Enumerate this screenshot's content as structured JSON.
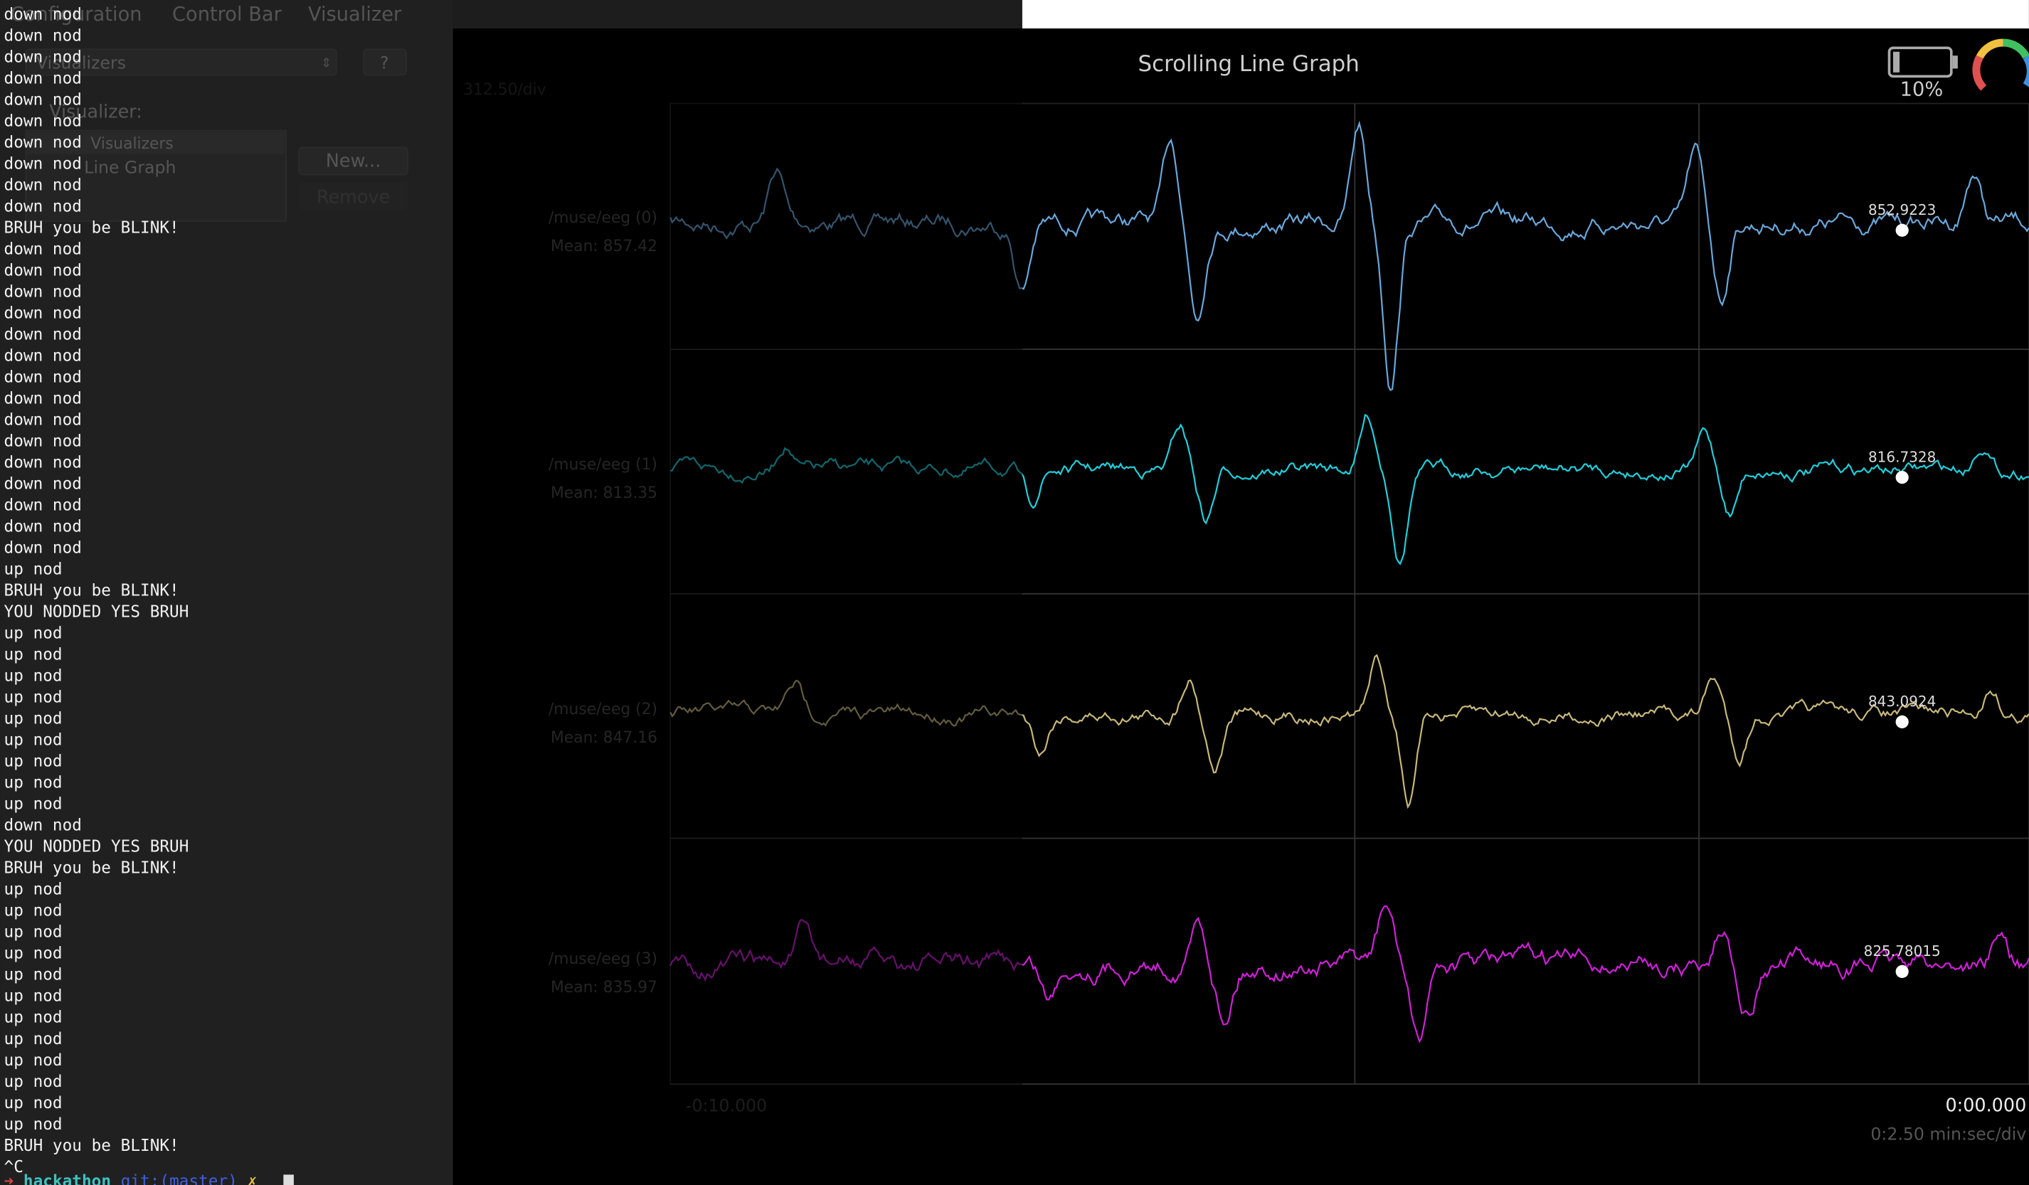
{
  "menu": [
    "Configuration",
    "Control Bar",
    "Visualizer"
  ],
  "panel": {
    "dropdown": "Visualizers",
    "help": "?",
    "label": "Visualizer:",
    "list": [
      "Visualizers",
      "Line Graph"
    ],
    "new_button": "New...",
    "remove_button": "Remove"
  },
  "graph": {
    "title": "Scrolling Line Graph",
    "scale": "312.50/div",
    "battery": "10%",
    "channels": [
      {
        "name": "/muse/eeg (0)",
        "mean": "Mean: 857.42",
        "current": "852.9223"
      },
      {
        "name": "/muse/eeg (1)",
        "mean": "Mean: 813.35",
        "current": "816.7328"
      },
      {
        "name": "/muse/eeg (2)",
        "mean": "Mean: 847.16",
        "current": "843.0924"
      },
      {
        "name": "/muse/eeg (3)",
        "mean": "Mean: 835.97",
        "current": "825.78015"
      }
    ],
    "x_start": "-0:10.000",
    "x_end": "0:00.000",
    "x_scale": "0:2.50 min:sec/div"
  },
  "terminal": {
    "lines": [
      "down nod",
      "down nod",
      "down nod",
      "down nod",
      "down nod",
      "down nod",
      "down nod",
      "down nod",
      "down nod",
      "down nod",
      "BRUH you be BLINK!",
      "down nod",
      "down nod",
      "down nod",
      "down nod",
      "down nod",
      "down nod",
      "down nod",
      "down nod",
      "down nod",
      "down nod",
      "down nod",
      "down nod",
      "down nod",
      "down nod",
      "down nod",
      "up nod",
      "BRUH you be BLINK!",
      "YOU NODDED YES BRUH",
      "up nod",
      "up nod",
      "up nod",
      "up nod",
      "up nod",
      "up nod",
      "up nod",
      "up nod",
      "up nod",
      "down nod",
      "YOU NODDED YES BRUH",
      "BRUH you be BLINK!",
      "up nod",
      "up nod",
      "up nod",
      "up nod",
      "up nod",
      "up nod",
      "up nod",
      "up nod",
      "up nod",
      "up nod",
      "up nod",
      "up nod",
      "BRUH you be BLINK!",
      "^C"
    ],
    "prompt_arrow": "➜",
    "prompt_dir": "hackathon",
    "prompt_git": "git:(master)",
    "prompt_mark": "✗"
  }
}
